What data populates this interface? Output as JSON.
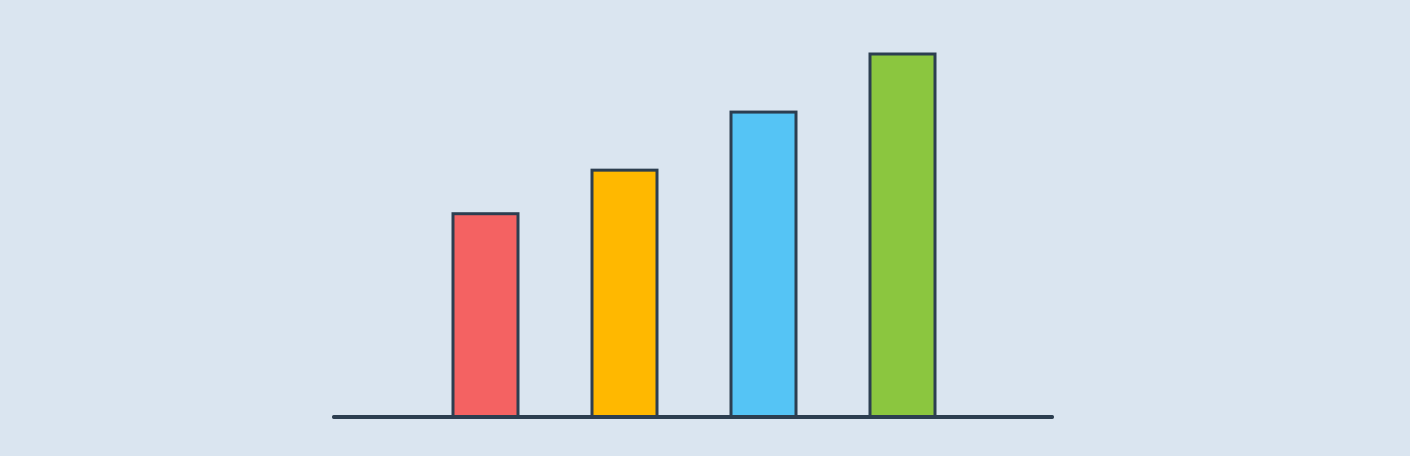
{
  "chart_data": {
    "type": "bar",
    "values": [
      56,
      68,
      84,
      100
    ],
    "colors": [
      "#f46262",
      "#ffb800",
      "#55c4f5",
      "#8bc63f"
    ],
    "ylim": [
      0,
      100
    ]
  }
}
